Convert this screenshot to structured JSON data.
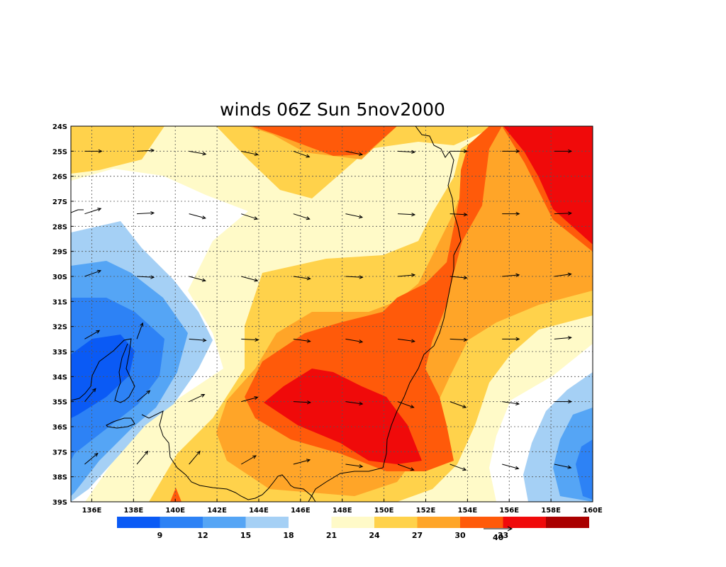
{
  "title": "winds 06Z Sun 5nov2000",
  "map": {
    "lon_range": [
      135,
      160
    ],
    "lat_range": [
      -39,
      -24
    ],
    "lon_ticks": [
      "136E",
      "138E",
      "140E",
      "142E",
      "144E",
      "146E",
      "148E",
      "150E",
      "152E",
      "154E",
      "156E",
      "158E",
      "160E"
    ],
    "lat_ticks": [
      "24S",
      "25S",
      "26S",
      "27S",
      "28S",
      "29S",
      "30S",
      "31S",
      "32S",
      "33S",
      "34S",
      "35S",
      "36S",
      "37S",
      "38S",
      "39S"
    ],
    "grid": "dotted",
    "coastline": "black"
  },
  "colorbar": {
    "levels": [
      "9",
      "12",
      "15",
      "18",
      "21",
      "24",
      "27",
      "30",
      "33"
    ],
    "colors": [
      "#0a5af5",
      "#2d82f5",
      "#55a5f5",
      "#a5d0f5",
      "#ffffff",
      "#fffac8",
      "#ffd24b",
      "#ffa528",
      "#ff5a0a",
      "#f00a0a",
      "#aa0000"
    ]
  },
  "reference_vector": {
    "label": "40"
  }
}
